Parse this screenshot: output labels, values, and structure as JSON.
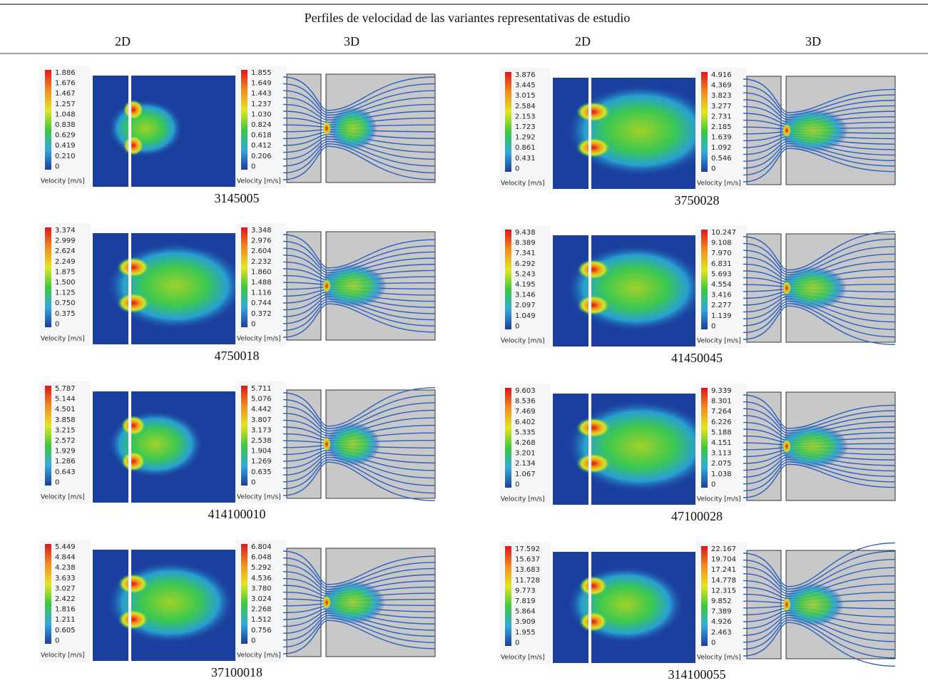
{
  "header": {
    "title": "Perfiles de velocidad de las variantes representativas de estudio",
    "columns": [
      "2D",
      "3D",
      "2D",
      "3D"
    ]
  },
  "legend_title": "Velocity [m/s]",
  "panels": [
    {
      "label": "3145005",
      "ticks_2d": [
        "1.886",
        "1.676",
        "1.467",
        "1.257",
        "1.048",
        "0.838",
        "0.629",
        "0.419",
        "0.210",
        "0"
      ],
      "ticks_3d": [
        "1.855",
        "1.649",
        "1.443",
        "1.237",
        "1.030",
        "0.824",
        "0.618",
        "0.412",
        "0.206",
        "0"
      ]
    },
    {
      "label": "3750028",
      "ticks_2d": [
        "3.876",
        "3.445",
        "3.015",
        "2.584",
        "2.153",
        "1.723",
        "1.292",
        "0.861",
        "0.431",
        "0"
      ],
      "ticks_3d": [
        "4.916",
        "4.369",
        "3.823",
        "3.277",
        "2.731",
        "2.185",
        "1.639",
        "1.092",
        "0.546",
        "0"
      ]
    },
    {
      "label": "4750018",
      "ticks_2d": [
        "3.374",
        "2.999",
        "2.624",
        "2.249",
        "1.875",
        "1.500",
        "1.125",
        "0.750",
        "0.375",
        "0"
      ],
      "ticks_3d": [
        "3.348",
        "2.976",
        "2.604",
        "2.232",
        "1.860",
        "1.488",
        "1.116",
        "0.744",
        "0.372",
        "0"
      ]
    },
    {
      "label": "41450045",
      "ticks_2d": [
        "9.438",
        "8.389",
        "7.341",
        "6.292",
        "5.243",
        "4.195",
        "3.146",
        "2.097",
        "1.049",
        "0"
      ],
      "ticks_3d": [
        "10.247",
        "9.108",
        "7.970",
        "6.831",
        "5.693",
        "4.554",
        "3.416",
        "2.277",
        "1.139",
        "0"
      ]
    },
    {
      "label": "414100010",
      "ticks_2d": [
        "5.787",
        "5.144",
        "4.501",
        "3.858",
        "3.215",
        "2.572",
        "1.929",
        "1.286",
        "0.643",
        "0"
      ],
      "ticks_3d": [
        "5.711",
        "5.076",
        "4.442",
        "3.807",
        "3.173",
        "2.538",
        "1.904",
        "1.269",
        "0.635",
        "0"
      ]
    },
    {
      "label": "47100028",
      "ticks_2d": [
        "9.603",
        "8.536",
        "7.469",
        "6.402",
        "5.335",
        "4.268",
        "3.201",
        "2.134",
        "1.067",
        "0"
      ],
      "ticks_3d": [
        "9.339",
        "8.301",
        "7.264",
        "6.226",
        "5.188",
        "4.151",
        "3.113",
        "2.075",
        "1.038",
        "0"
      ]
    },
    {
      "label": "37100018",
      "ticks_2d": [
        "5.449",
        "4.844",
        "4.238",
        "3.633",
        "3.027",
        "2.422",
        "1.816",
        "1.211",
        "0.605",
        "0"
      ],
      "ticks_3d": [
        "6.804",
        "6.048",
        "5.292",
        "4.536",
        "3.780",
        "3.024",
        "2.268",
        "1.512",
        "0.756",
        "0"
      ]
    },
    {
      "label": "314100055",
      "ticks_2d": [
        "17.592",
        "15.637",
        "13.683",
        "11.728",
        "9.773",
        "7.819",
        "5.864",
        "3.909",
        "1.955",
        "0"
      ],
      "ticks_3d": [
        "22.167",
        "19.704",
        "17.241",
        "14.778",
        "12.315",
        "9.852",
        "7.389",
        "4.926",
        "2.463",
        "0"
      ]
    }
  ]
}
